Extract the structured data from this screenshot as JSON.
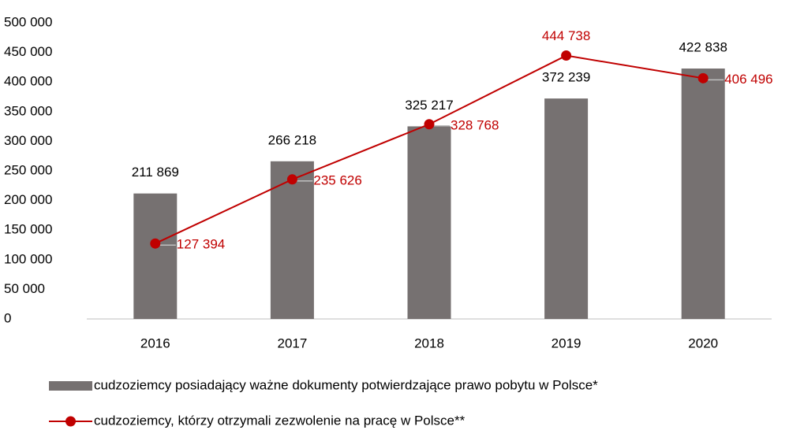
{
  "chart_data": {
    "type": "bar",
    "categories": [
      "2016",
      "2017",
      "2018",
      "2019",
      "2020"
    ],
    "series": [
      {
        "name": "cudzoziemcy posiadający ważne dokumenty potwierdzające prawo pobytu w Polsce*",
        "type": "bar",
        "color": "#767171",
        "values": [
          211869,
          266218,
          325217,
          372239,
          422838
        ],
        "value_labels": [
          "211 869",
          "266 218",
          "325 217",
          "372 239",
          "422 838"
        ]
      },
      {
        "name": "cudzoziemcy, którzy otrzymali zezwolenie na pracę w Polsce**",
        "type": "line",
        "color": "#c00000",
        "values": [
          127394,
          235626,
          328768,
          444738,
          406496
        ],
        "value_labels": [
          "127 394",
          "235 626",
          "328 768",
          "444 738",
          "406 496"
        ]
      }
    ],
    "ylim": [
      0,
      500000
    ],
    "yticks": [
      {
        "value": 0,
        "label": "0"
      },
      {
        "value": 50000,
        "label": "50 000"
      },
      {
        "value": 100000,
        "label": "100 000"
      },
      {
        "value": 150000,
        "label": "150 000"
      },
      {
        "value": 200000,
        "label": "200 000"
      },
      {
        "value": 250000,
        "label": "250 000"
      },
      {
        "value": 300000,
        "label": "300 000"
      },
      {
        "value": 350000,
        "label": "350 000"
      },
      {
        "value": 400000,
        "label": "400 000"
      },
      {
        "value": 450000,
        "label": "450 000"
      },
      {
        "value": 500000,
        "label": "500 000"
      }
    ],
    "grid": false
  }
}
